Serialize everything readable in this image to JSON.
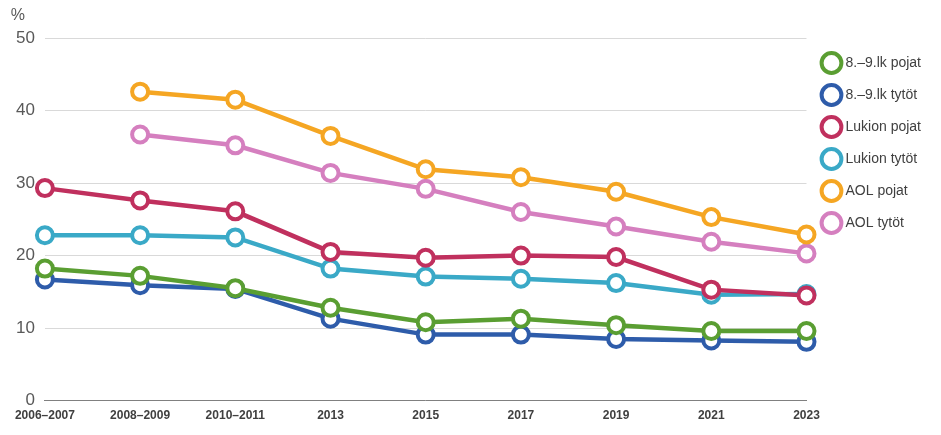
{
  "chart_data": {
    "type": "line",
    "y_label": "%",
    "categories": [
      "2006–2007",
      "2008–2009",
      "2010–2011",
      "2013",
      "2015",
      "2017",
      "2019",
      "2021",
      "2023"
    ],
    "series": [
      {
        "name": "8.–9.lk pojat",
        "color": "#5a9e32",
        "values": [
          18.2,
          17.2,
          15.5,
          12.8,
          10.8,
          11.3,
          10.4,
          9.6,
          9.6
        ]
      },
      {
        "name": "8.–9.lk tytöt",
        "color": "#2e5caa",
        "values": [
          16.7,
          15.9,
          15.4,
          11.3,
          9.1,
          9.1,
          8.5,
          8.3,
          8.1
        ]
      },
      {
        "name": "Lukion pojat",
        "color": "#c0305e",
        "values": [
          29.3,
          27.6,
          26.1,
          20.5,
          19.7,
          20.0,
          19.8,
          15.3,
          14.5
        ]
      },
      {
        "name": "Lukion tytöt",
        "color": "#3aa9c7",
        "values": [
          22.8,
          22.8,
          22.5,
          18.2,
          17.1,
          16.8,
          16.2,
          14.6,
          14.7
        ]
      },
      {
        "name": "AOL pojat",
        "color": "#f5a623",
        "values": [
          null,
          42.6,
          41.5,
          36.5,
          31.9,
          30.8,
          28.8,
          25.3,
          22.9
        ]
      },
      {
        "name": "AOL tytöt",
        "color": "#d57fbf",
        "values": [
          null,
          36.7,
          35.2,
          31.4,
          29.2,
          26.0,
          24.0,
          21.9,
          20.3
        ]
      }
    ],
    "ylim": [
      0,
      50
    ],
    "yticks": [
      0,
      10,
      20,
      30,
      40,
      50
    ],
    "grid": true,
    "legend": "right",
    "marker": "circle"
  }
}
